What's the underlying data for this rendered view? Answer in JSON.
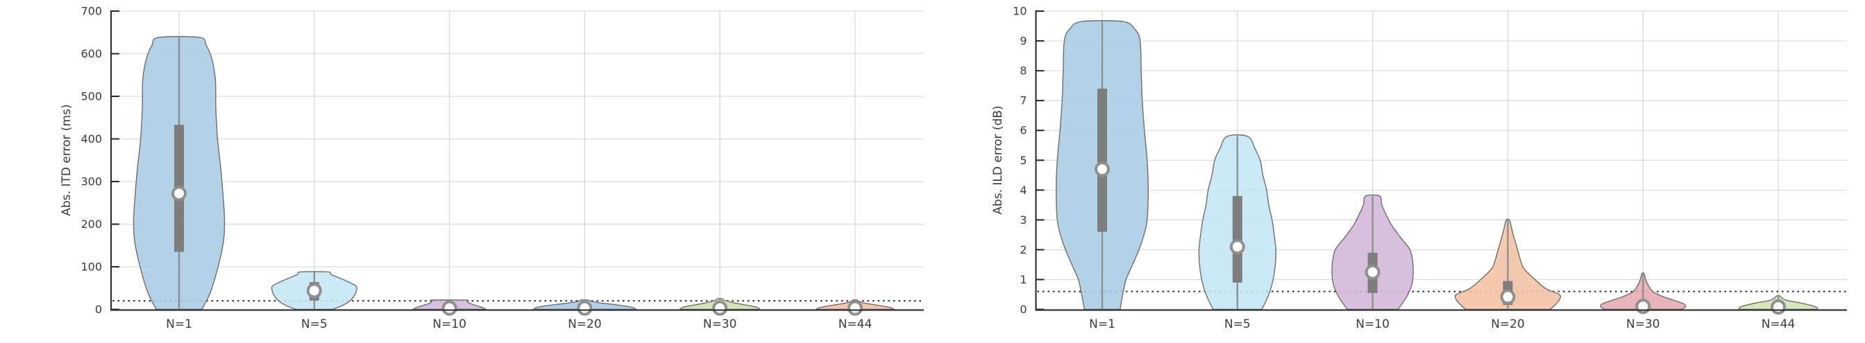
{
  "figure": {
    "background": "#ffffff",
    "description": "Two violin plots: absolute ITD error (ms) and absolute ILD error (dB) versus number of conditions N"
  },
  "style_colors": {
    "axis": "#262626",
    "text": "#3b3b3b",
    "grid": "#dcdcdc",
    "vertical_grid": "#d6d6d6",
    "reference_line": "#1a1a1a",
    "violin_edge": "#6d6d6d",
    "box_fill": "#7d7d7d",
    "whisker": "#8f8f8f",
    "median_dot_fill": "#ffffff",
    "median_dot_ring": "#8f8f8f"
  },
  "chart_data": [
    {
      "type": "violin",
      "title": "",
      "xlabel": "",
      "ylabel": "Abs. ITD error (ms)",
      "ylim": [
        0,
        700
      ],
      "yticks": [
        0,
        100,
        200,
        300,
        400,
        500,
        600,
        700
      ],
      "grid": "horizontal and vertical light gray gridlines, no top/right spines",
      "legend": "none",
      "reference_line_y": 20,
      "categories": [
        "N=1",
        "N=5",
        "N=10",
        "N=20",
        "N=30",
        "N=44"
      ],
      "violins": [
        {
          "label": "N=1",
          "fill": "#a9cbe4",
          "min": 0,
          "max": 638,
          "q1": 135,
          "median": 272,
          "q3": 433,
          "profile": [
            [
              0,
              0.42
            ],
            [
              40,
              0.58
            ],
            [
              100,
              0.72
            ],
            [
              160,
              0.82
            ],
            [
              210,
              0.84
            ],
            [
              270,
              0.81
            ],
            [
              330,
              0.77
            ],
            [
              400,
              0.71
            ],
            [
              470,
              0.68
            ],
            [
              540,
              0.67
            ],
            [
              590,
              0.6
            ],
            [
              620,
              0.5
            ],
            [
              638,
              0.38
            ]
          ]
        },
        {
          "label": "N=5",
          "fill": "#c3e5f4",
          "min": 0,
          "max": 88,
          "q1": 21,
          "median": 44,
          "q3": 64,
          "profile": [
            [
              0,
              0.34
            ],
            [
              8,
              0.5
            ],
            [
              18,
              0.64
            ],
            [
              32,
              0.74
            ],
            [
              45,
              0.78
            ],
            [
              55,
              0.77
            ],
            [
              65,
              0.62
            ],
            [
              75,
              0.44
            ],
            [
              82,
              0.31
            ],
            [
              88,
              0.25
            ]
          ]
        },
        {
          "label": "N=10",
          "fill": "#d2b6d8",
          "min": 0,
          "max": 22,
          "q1": 1,
          "median": 3,
          "q3": 16,
          "profile": [
            [
              0,
              0.67
            ],
            [
              4,
              0.62
            ],
            [
              8,
              0.52
            ],
            [
              12,
              0.42
            ],
            [
              15,
              0.36
            ],
            [
              18,
              0.33
            ],
            [
              20,
              0.32
            ],
            [
              22,
              0.3
            ]
          ]
        },
        {
          "label": "N=20",
          "fill": "#a7c8e2",
          "min": 0,
          "max": 22,
          "q1": 1,
          "median": 3,
          "q3": 14,
          "profile": [
            [
              0,
              0.95
            ],
            [
              4,
              0.9
            ],
            [
              8,
              0.74
            ],
            [
              12,
              0.5
            ],
            [
              15,
              0.3
            ],
            [
              18,
              0.16
            ],
            [
              20,
              0.1
            ],
            [
              22,
              0.06
            ]
          ]
        },
        {
          "label": "N=30",
          "fill": "#cbdfad",
          "min": 0,
          "max": 25,
          "q1": 1,
          "median": 3,
          "q3": 14,
          "profile": [
            [
              0,
              0.74
            ],
            [
              4,
              0.7
            ],
            [
              8,
              0.58
            ],
            [
              12,
              0.4
            ],
            [
              16,
              0.24
            ],
            [
              20,
              0.12
            ],
            [
              23,
              0.06
            ],
            [
              25,
              0.04
            ]
          ]
        },
        {
          "label": "N=44",
          "fill": "#f2bba1",
          "min": 0,
          "max": 22,
          "q1": 1,
          "median": 3,
          "q3": 13,
          "profile": [
            [
              0,
              0.72
            ],
            [
              4,
              0.66
            ],
            [
              8,
              0.5
            ],
            [
              12,
              0.3
            ],
            [
              16,
              0.14
            ],
            [
              19,
              0.07
            ],
            [
              22,
              0.04
            ]
          ]
        }
      ]
    },
    {
      "type": "violin",
      "title": "",
      "xlabel": "",
      "ylabel": "Abs. ILD error (dB)",
      "ylim": [
        0,
        10
      ],
      "yticks": [
        0,
        1,
        2,
        3,
        4,
        5,
        6,
        7,
        8,
        9,
        10
      ],
      "grid": "horizontal and vertical light gray gridlines, no top/right spines",
      "legend": "none",
      "reference_line_y": 0.6,
      "categories": [
        "N=1",
        "N=5",
        "N=10",
        "N=20",
        "N=30",
        "N=44"
      ],
      "violins": [
        {
          "label": "N=1",
          "fill": "#a9cbe4",
          "min": 0,
          "max": 9.65,
          "q1": 2.6,
          "median": 4.7,
          "q3": 7.4,
          "profile": [
            [
              0,
              0.33
            ],
            [
              0.5,
              0.38
            ],
            [
              1,
              0.44
            ],
            [
              1.5,
              0.56
            ],
            [
              2,
              0.68
            ],
            [
              2.5,
              0.77
            ],
            [
              3,
              0.83
            ],
            [
              4,
              0.85
            ],
            [
              5,
              0.83
            ],
            [
              6,
              0.78
            ],
            [
              7,
              0.74
            ],
            [
              8,
              0.72
            ],
            [
              9,
              0.7
            ],
            [
              9.4,
              0.6
            ],
            [
              9.65,
              0.38
            ]
          ]
        },
        {
          "label": "N=5",
          "fill": "#c3e5f4",
          "min": 0,
          "max": 5.8,
          "q1": 0.9,
          "median": 2.1,
          "q3": 3.8,
          "profile": [
            [
              0,
              0.45
            ],
            [
              0.5,
              0.58
            ],
            [
              1,
              0.66
            ],
            [
              1.5,
              0.7
            ],
            [
              2,
              0.71
            ],
            [
              2.5,
              0.68
            ],
            [
              3,
              0.64
            ],
            [
              3.5,
              0.58
            ],
            [
              4,
              0.54
            ],
            [
              4.5,
              0.47
            ],
            [
              5,
              0.42
            ],
            [
              5.4,
              0.32
            ],
            [
              5.8,
              0.19
            ]
          ]
        },
        {
          "label": "N=10",
          "fill": "#d2b6d8",
          "min": 0,
          "max": 3.8,
          "q1": 0.55,
          "median": 1.25,
          "q3": 1.9,
          "profile": [
            [
              0,
              0.47
            ],
            [
              0.4,
              0.62
            ],
            [
              0.8,
              0.72
            ],
            [
              1.2,
              0.75
            ],
            [
              1.6,
              0.74
            ],
            [
              2,
              0.69
            ],
            [
              2.4,
              0.52
            ],
            [
              2.8,
              0.36
            ],
            [
              3.1,
              0.27
            ],
            [
              3.5,
              0.17
            ],
            [
              3.8,
              0.13
            ]
          ]
        },
        {
          "label": "N=20",
          "fill": "#f4c2a4",
          "min": 0,
          "max": 3.0,
          "q1": 0.15,
          "median": 0.42,
          "q3": 0.95,
          "profile": [
            [
              0,
              0.78
            ],
            [
              0.2,
              0.9
            ],
            [
              0.35,
              0.96
            ],
            [
              0.5,
              0.95
            ],
            [
              0.7,
              0.7
            ],
            [
              1,
              0.5
            ],
            [
              1.3,
              0.33
            ],
            [
              1.5,
              0.26
            ],
            [
              2,
              0.18
            ],
            [
              2.5,
              0.1
            ],
            [
              2.8,
              0.06
            ],
            [
              3,
              0.03
            ]
          ]
        },
        {
          "label": "N=30",
          "fill": "#e6a8b3",
          "min": 0,
          "max": 1.2,
          "q1": 0.03,
          "median": 0.1,
          "q3": 0.26,
          "profile": [
            [
              0,
              0.71
            ],
            [
              0.08,
              0.78
            ],
            [
              0.18,
              0.76
            ],
            [
              0.3,
              0.58
            ],
            [
              0.45,
              0.34
            ],
            [
              0.6,
              0.18
            ],
            [
              0.8,
              0.1
            ],
            [
              1,
              0.05
            ],
            [
              1.2,
              0.02
            ]
          ]
        },
        {
          "label": "N=44",
          "fill": "#cfe3b2",
          "min": 0,
          "max": 0.45,
          "q1": 0.02,
          "median": 0.08,
          "q3": 0.2,
          "profile": [
            [
              0,
              0.73
            ],
            [
              0.08,
              0.7
            ],
            [
              0.15,
              0.57
            ],
            [
              0.22,
              0.4
            ],
            [
              0.3,
              0.16
            ],
            [
              0.38,
              0.07
            ],
            [
              0.45,
              0.03
            ]
          ]
        }
      ]
    }
  ]
}
